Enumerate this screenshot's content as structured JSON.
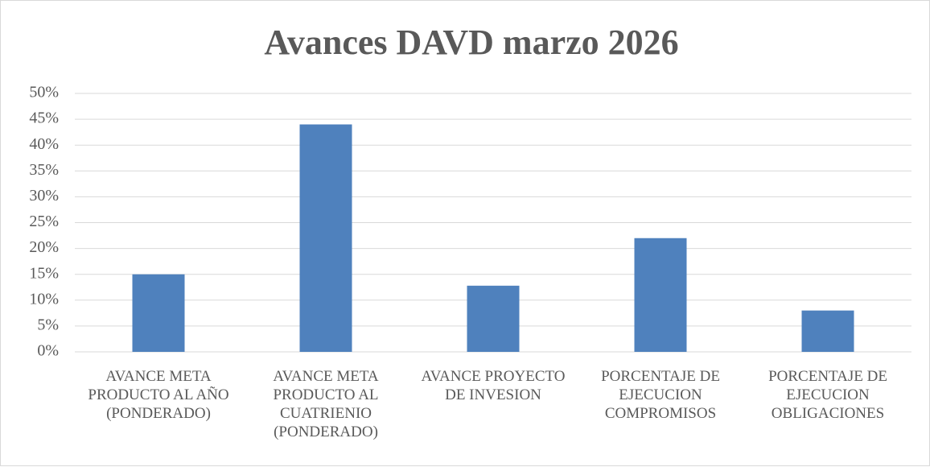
{
  "chart_data": {
    "type": "bar",
    "title": "Avances DAVD marzo 2026",
    "categories": [
      "AVANCE META PRODUCTO AL AÑO (PONDERADO)",
      "AVANCE META PRODUCTO AL CUATRIENIO (PONDERADO)",
      "AVANCE PROYECTO DE INVESION",
      "PORCENTAJE DE EJECUCION COMPROMISOS",
      "PORCENTAJE DE EJECUCION OBLIGACIONES"
    ],
    "values": [
      15,
      44,
      12.8,
      22,
      8
    ],
    "color": "#4f81bd",
    "ylim": [
      0,
      50
    ],
    "yticks": [
      {
        "value": 0,
        "label": "0%"
      },
      {
        "value": 5,
        "label": "5%"
      },
      {
        "value": 10,
        "label": "10%"
      },
      {
        "value": 15,
        "label": "15%"
      },
      {
        "value": 20,
        "label": "20%"
      },
      {
        "value": 25,
        "label": "25%"
      },
      {
        "value": 30,
        "label": "30%"
      },
      {
        "value": 35,
        "label": "35%"
      },
      {
        "value": 40,
        "label": "40%"
      },
      {
        "value": 45,
        "label": "45%"
      },
      {
        "value": 50,
        "label": "50%"
      }
    ],
    "grid": true
  }
}
